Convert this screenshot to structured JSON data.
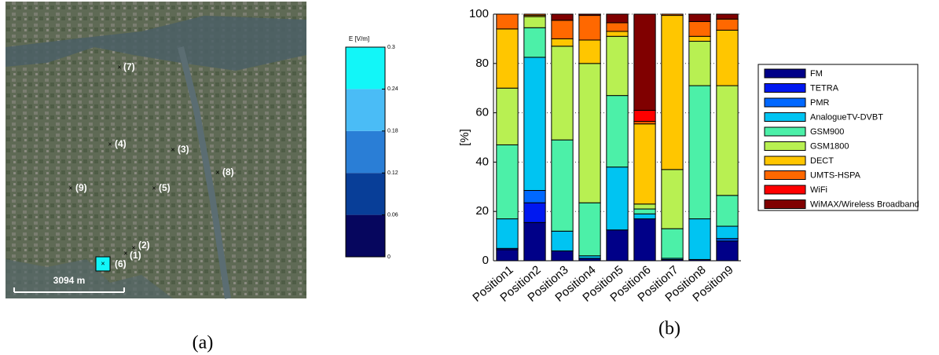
{
  "figure": {
    "map": {
      "labels": [
        "(1)",
        "(2)",
        "(3)",
        "(4)",
        "(5)",
        "(6)",
        "(7)",
        "(8)",
        "(9)"
      ],
      "scale": "3094 m"
    },
    "colorbar": {
      "title": "E [V/m]",
      "lim": [
        0,
        0.3
      ],
      "ticks": [
        0,
        0.06,
        0.12,
        0.18,
        0.24,
        0.3
      ],
      "colors": [
        "#06065e",
        "#083e98",
        "#2a7ed6",
        "#4abcf6",
        "#12f6f8"
      ]
    },
    "captions": [
      "(a)",
      "(b)"
    ]
  },
  "chart_data": {
    "type": "stacked_bar",
    "ylabel": "[%]",
    "categories": [
      "Position1",
      "Position2",
      "Position3",
      "Position4",
      "Position5",
      "Position6",
      "Position7",
      "Position8",
      "Position9"
    ],
    "ylim": [
      0,
      100
    ],
    "yticks": [
      0,
      20,
      40,
      60,
      80,
      100
    ],
    "grid": true,
    "legend": "right",
    "series": [
      {
        "name": "FM",
        "color": "#000088",
        "values": [
          4.5,
          15.5,
          4,
          1,
          12.5,
          17,
          0.5,
          0.5,
          8
        ]
      },
      {
        "name": "TETRA",
        "color": "#0018f0",
        "values": [
          0.5,
          8,
          0,
          0,
          0,
          0,
          0,
          0,
          0
        ]
      },
      {
        "name": "PMR",
        "color": "#0068ff",
        "values": [
          0,
          5,
          0,
          0,
          0,
          0,
          0,
          0,
          1
        ]
      },
      {
        "name": "AnalogueTV-DVBT",
        "color": "#00c4f2",
        "values": [
          12,
          54,
          8,
          1,
          25.5,
          2,
          0.5,
          16.5,
          5
        ]
      },
      {
        "name": "GSM900",
        "color": "#4cf0a8",
        "values": [
          30,
          12,
          37,
          21.5,
          29,
          2,
          12,
          54,
          12.5
        ]
      },
      {
        "name": "GSM1800",
        "color": "#b8f052",
        "values": [
          23,
          4.5,
          38,
          56.5,
          24,
          2,
          24,
          18,
          44.5
        ]
      },
      {
        "name": "DECT",
        "color": "#ffc600",
        "values": [
          24,
          0.5,
          3,
          9.5,
          2,
          32.5,
          62.5,
          2,
          22.5
        ]
      },
      {
        "name": "UMTS-HSPA",
        "color": "#ff6800",
        "values": [
          6,
          0.5,
          7.5,
          10,
          3.5,
          1,
          0.5,
          6,
          4.5
        ]
      },
      {
        "name": "WiFi",
        "color": "#ff0000",
        "values": [
          0,
          0,
          0,
          0,
          0,
          4.5,
          0,
          0,
          0
        ]
      },
      {
        "name": "WiMAX/Wireless Broadband",
        "color": "#800000",
        "values": [
          0,
          0,
          2.5,
          0.5,
          3.5,
          39,
          0,
          3,
          2
        ]
      }
    ]
  }
}
